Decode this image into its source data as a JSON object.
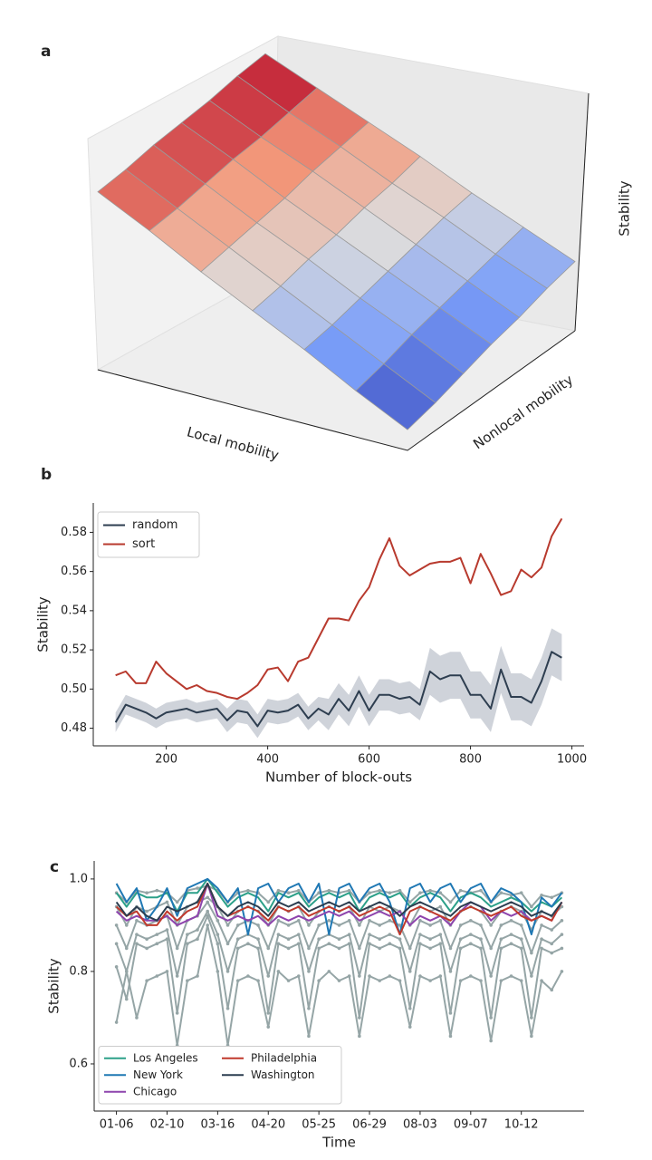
{
  "chart_data": [
    {
      "type": "surface",
      "panel_label": "a",
      "xlabel": "Local mobility",
      "ylabel": "Nonlocal mobility",
      "zlabel": "Stability",
      "z": [
        [
          0.77,
          0.66,
          0.54,
          0.43,
          0.32,
          0.2,
          0.09
        ],
        [
          0.78,
          0.67,
          0.56,
          0.45,
          0.34,
          0.23,
          0.12
        ],
        [
          0.8,
          0.69,
          0.58,
          0.48,
          0.37,
          0.27,
          0.16
        ],
        [
          0.81,
          0.71,
          0.6,
          0.5,
          0.4,
          0.3,
          0.2
        ],
        [
          0.82,
          0.72,
          0.63,
          0.53,
          0.43,
          0.33,
          0.23
        ],
        [
          0.84,
          0.74,
          0.65,
          0.55,
          0.46,
          0.36,
          0.27
        ],
        [
          0.85,
          0.76,
          0.67,
          0.58,
          0.48,
          0.39,
          0.3
        ]
      ]
    },
    {
      "type": "line",
      "panel_label": "b",
      "xlabel": "Number of block-outs",
      "ylabel": "Stability",
      "legend": "upper left",
      "x": [
        100,
        120,
        140,
        160,
        180,
        200,
        220,
        240,
        260,
        280,
        300,
        320,
        340,
        360,
        380,
        400,
        420,
        440,
        460,
        480,
        500,
        520,
        540,
        560,
        580,
        600,
        620,
        640,
        660,
        680,
        700,
        720,
        740,
        760,
        780,
        800,
        820,
        840,
        860,
        880,
        900,
        920,
        940,
        960,
        980
      ],
      "xlim": [
        56,
        1024
      ],
      "xticks": [
        200,
        400,
        600,
        800,
        1000
      ],
      "ylim": [
        0.471,
        0.595
      ],
      "yticks": [
        0.48,
        {
          "value": 0.5,
          "label": "0.50"
        },
        0.52,
        0.54,
        0.56,
        0.58
      ],
      "series": [
        {
          "name": "random",
          "color": "#2e3e50",
          "band_color": "#cfd3da",
          "values": [
            0.483,
            0.492,
            0.49,
            0.488,
            0.485,
            0.488,
            0.489,
            0.49,
            0.488,
            0.489,
            0.49,
            0.484,
            0.489,
            0.488,
            0.481,
            0.489,
            0.488,
            0.489,
            0.492,
            0.485,
            0.49,
            0.487,
            0.495,
            0.489,
            0.499,
            0.489,
            0.497,
            0.497,
            0.495,
            0.496,
            0.492,
            0.509,
            0.505,
            0.507,
            0.507,
            0.497,
            0.497,
            0.49,
            0.51,
            0.496,
            0.496,
            0.493,
            0.504,
            0.519,
            0.516
          ],
          "lower": [
            0.478,
            0.487,
            0.485,
            0.483,
            0.48,
            0.483,
            0.484,
            0.485,
            0.483,
            0.484,
            0.485,
            0.478,
            0.483,
            0.482,
            0.475,
            0.483,
            0.482,
            0.483,
            0.486,
            0.479,
            0.484,
            0.479,
            0.487,
            0.481,
            0.491,
            0.481,
            0.489,
            0.489,
            0.487,
            0.488,
            0.484,
            0.497,
            0.493,
            0.495,
            0.495,
            0.485,
            0.485,
            0.478,
            0.498,
            0.484,
            0.484,
            0.481,
            0.492,
            0.507,
            0.504
          ],
          "upper": [
            0.488,
            0.497,
            0.495,
            0.493,
            0.49,
            0.493,
            0.494,
            0.495,
            0.493,
            0.494,
            0.495,
            0.49,
            0.495,
            0.494,
            0.487,
            0.495,
            0.494,
            0.495,
            0.498,
            0.491,
            0.496,
            0.495,
            0.503,
            0.497,
            0.507,
            0.497,
            0.505,
            0.505,
            0.503,
            0.504,
            0.5,
            0.521,
            0.517,
            0.519,
            0.519,
            0.509,
            0.509,
            0.502,
            0.522,
            0.508,
            0.508,
            0.505,
            0.516,
            0.531,
            0.528
          ]
        },
        {
          "name": "sort",
          "color": "#b83a2e",
          "values": [
            0.507,
            0.509,
            0.503,
            0.503,
            0.514,
            0.508,
            0.504,
            0.5,
            0.502,
            0.499,
            0.498,
            0.496,
            0.495,
            0.498,
            0.502,
            0.51,
            0.511,
            0.504,
            0.514,
            0.516,
            0.526,
            0.536,
            0.536,
            0.535,
            0.545,
            0.552,
            0.566,
            0.577,
            0.563,
            0.558,
            0.561,
            0.564,
            0.565,
            0.565,
            0.567,
            0.554,
            0.569,
            0.559,
            0.548,
            0.55,
            0.561,
            0.557,
            0.562,
            0.578,
            0.587
          ]
        }
      ]
    },
    {
      "type": "line",
      "panel_label": "c",
      "xlabel": "Time",
      "ylabel": "Stability",
      "legend": "lower left",
      "legend_columns": 2,
      "categories": [
        "01-06",
        null,
        null,
        null,
        null,
        "02-10",
        null,
        null,
        null,
        null,
        "03-16",
        null,
        null,
        null,
        null,
        "04-20",
        null,
        null,
        null,
        null,
        "05-25",
        null,
        null,
        null,
        null,
        "06-29",
        null,
        null,
        null,
        null,
        "08-03",
        null,
        null,
        null,
        null,
        "09-07",
        null,
        null,
        null,
        null,
        "10-12",
        null,
        null,
        null,
        null
      ],
      "xlim": [
        -2.2,
        46.2
      ],
      "ylim": [
        0.498,
        1.039
      ],
      "yticks": [
        {
          "value": 1.0,
          "label": "1.0"
        },
        0.8,
        0.6
      ],
      "series": [
        {
          "color": "#95a5a6",
          "marker": true,
          "values": [
            0.97,
            0.95,
            0.975,
            0.97,
            0.975,
            0.97,
            0.95,
            0.975,
            0.98,
            0.985,
            0.975,
            0.95,
            0.97,
            0.975,
            0.97,
            0.95,
            0.975,
            0.97,
            0.975,
            0.95,
            0.97,
            0.975,
            0.97,
            0.975,
            0.95,
            0.97,
            0.975,
            0.97,
            0.975,
            0.95,
            0.97,
            0.975,
            0.97,
            0.95,
            0.975,
            0.97,
            0.975,
            0.95,
            0.97,
            0.965,
            0.97,
            0.94,
            0.965,
            0.96,
            0.97
          ]
        },
        {
          "color": "#95a5a6",
          "marker": true,
          "values": [
            0.94,
            0.9,
            0.94,
            0.93,
            0.94,
            0.95,
            0.9,
            0.94,
            0.95,
            0.96,
            0.94,
            0.9,
            0.93,
            0.94,
            0.93,
            0.9,
            0.94,
            0.93,
            0.94,
            0.9,
            0.93,
            0.94,
            0.93,
            0.94,
            0.9,
            0.94,
            0.93,
            0.94,
            0.93,
            0.9,
            0.94,
            0.93,
            0.94,
            0.9,
            0.93,
            0.94,
            0.93,
            0.9,
            0.93,
            0.94,
            0.93,
            0.89,
            0.93,
            0.92,
            0.94
          ]
        },
        {
          "color": "#95a5a6",
          "marker": true,
          "values": [
            0.9,
            0.85,
            0.91,
            0.9,
            0.91,
            0.92,
            0.85,
            0.91,
            0.92,
            0.95,
            0.91,
            0.86,
            0.9,
            0.91,
            0.9,
            0.85,
            0.91,
            0.9,
            0.91,
            0.85,
            0.9,
            0.91,
            0.9,
            0.91,
            0.85,
            0.91,
            0.9,
            0.91,
            0.9,
            0.85,
            0.91,
            0.9,
            0.91,
            0.85,
            0.9,
            0.91,
            0.9,
            0.85,
            0.9,
            0.91,
            0.9,
            0.84,
            0.9,
            0.89,
            0.91
          ]
        },
        {
          "color": "#95a5a6",
          "marker": true,
          "values": [
            0.86,
            0.8,
            0.88,
            0.87,
            0.88,
            0.89,
            0.79,
            0.88,
            0.89,
            0.93,
            0.88,
            0.8,
            0.87,
            0.88,
            0.87,
            0.79,
            0.88,
            0.87,
            0.88,
            0.8,
            0.87,
            0.88,
            0.87,
            0.88,
            0.79,
            0.88,
            0.87,
            0.88,
            0.87,
            0.8,
            0.88,
            0.87,
            0.88,
            0.8,
            0.87,
            0.88,
            0.87,
            0.79,
            0.87,
            0.88,
            0.87,
            0.79,
            0.87,
            0.86,
            0.88
          ]
        },
        {
          "color": "#95a5a6",
          "marker": true,
          "values": [
            0.81,
            0.74,
            0.86,
            0.85,
            0.86,
            0.87,
            0.71,
            0.86,
            0.87,
            0.92,
            0.86,
            0.72,
            0.85,
            0.86,
            0.85,
            0.71,
            0.86,
            0.85,
            0.86,
            0.72,
            0.85,
            0.86,
            0.85,
            0.86,
            0.7,
            0.86,
            0.85,
            0.86,
            0.85,
            0.72,
            0.86,
            0.85,
            0.86,
            0.71,
            0.85,
            0.86,
            0.85,
            0.7,
            0.85,
            0.86,
            0.85,
            0.7,
            0.85,
            0.84,
            0.85
          ]
        },
        {
          "color": "#95a5a6",
          "marker": true,
          "values": [
            0.69,
            0.8,
            0.7,
            0.78,
            0.79,
            0.8,
            0.64,
            0.78,
            0.79,
            0.9,
            0.8,
            0.64,
            0.78,
            0.79,
            0.78,
            0.68,
            0.8,
            0.78,
            0.79,
            0.66,
            0.78,
            0.8,
            0.78,
            0.79,
            0.66,
            0.79,
            0.78,
            0.79,
            0.78,
            0.68,
            0.79,
            0.78,
            0.79,
            0.66,
            0.78,
            0.79,
            0.78,
            0.65,
            0.78,
            0.79,
            0.78,
            0.66,
            0.78,
            0.76,
            0.8
          ]
        },
        {
          "name": "Los Angeles",
          "color": "#2ca089",
          "values": [
            0.97,
            0.94,
            0.97,
            0.96,
            0.96,
            0.97,
            0.93,
            0.97,
            0.97,
            1.0,
            0.97,
            0.94,
            0.96,
            0.97,
            0.96,
            0.93,
            0.97,
            0.96,
            0.97,
            0.94,
            0.96,
            0.97,
            0.96,
            0.97,
            0.93,
            0.96,
            0.97,
            0.96,
            0.97,
            0.94,
            0.96,
            0.97,
            0.96,
            0.93,
            0.96,
            0.97,
            0.96,
            0.94,
            0.95,
            0.96,
            0.95,
            0.93,
            0.95,
            0.94,
            0.96
          ]
        },
        {
          "name": "New York",
          "color": "#1f78b4",
          "values": [
            0.99,
            0.95,
            0.98,
            0.91,
            0.94,
            0.98,
            0.92,
            0.98,
            0.99,
            1.0,
            0.98,
            0.95,
            0.98,
            0.88,
            0.98,
            0.99,
            0.95,
            0.98,
            0.99,
            0.95,
            0.99,
            0.88,
            0.98,
            0.99,
            0.95,
            0.98,
            0.99,
            0.95,
            0.88,
            0.98,
            0.99,
            0.95,
            0.98,
            0.99,
            0.95,
            0.98,
            0.99,
            0.95,
            0.98,
            0.97,
            0.95,
            0.88,
            0.96,
            0.94,
            0.97
          ]
        },
        {
          "name": "Chicago",
          "color": "#8e44ad",
          "values": [
            0.93,
            0.91,
            0.92,
            0.91,
            0.91,
            0.92,
            0.9,
            0.91,
            0.92,
            0.99,
            0.92,
            0.91,
            0.92,
            0.91,
            0.92,
            0.9,
            0.92,
            0.91,
            0.92,
            0.91,
            0.92,
            0.93,
            0.92,
            0.93,
            0.91,
            0.92,
            0.93,
            0.92,
            0.93,
            0.9,
            0.92,
            0.91,
            0.92,
            0.9,
            0.93,
            0.95,
            0.94,
            0.91,
            0.93,
            0.92,
            0.93,
            0.91,
            0.92,
            0.91,
            0.95
          ]
        },
        {
          "name": "Philadelphia",
          "color": "#c0392b",
          "values": [
            0.94,
            0.92,
            0.93,
            0.9,
            0.9,
            0.93,
            0.91,
            0.93,
            0.94,
            0.99,
            0.94,
            0.92,
            0.93,
            0.94,
            0.93,
            0.91,
            0.94,
            0.93,
            0.94,
            0.92,
            0.93,
            0.94,
            0.93,
            0.94,
            0.92,
            0.93,
            0.94,
            0.93,
            0.88,
            0.93,
            0.94,
            0.93,
            0.92,
            0.91,
            0.93,
            0.94,
            0.93,
            0.92,
            0.93,
            0.94,
            0.92,
            0.91,
            0.92,
            0.91,
            0.95
          ]
        },
        {
          "name": "Washington",
          "color": "#2c3e50",
          "values": [
            0.95,
            0.92,
            0.94,
            0.92,
            0.91,
            0.94,
            0.93,
            0.94,
            0.95,
            0.99,
            0.94,
            0.92,
            0.94,
            0.95,
            0.94,
            0.92,
            0.95,
            0.94,
            0.95,
            0.93,
            0.94,
            0.95,
            0.94,
            0.95,
            0.93,
            0.94,
            0.95,
            0.94,
            0.92,
            0.94,
            0.95,
            0.94,
            0.93,
            0.92,
            0.94,
            0.95,
            0.94,
            0.93,
            0.94,
            0.95,
            0.94,
            0.92,
            0.93,
            0.92,
            0.95
          ]
        }
      ]
    }
  ]
}
